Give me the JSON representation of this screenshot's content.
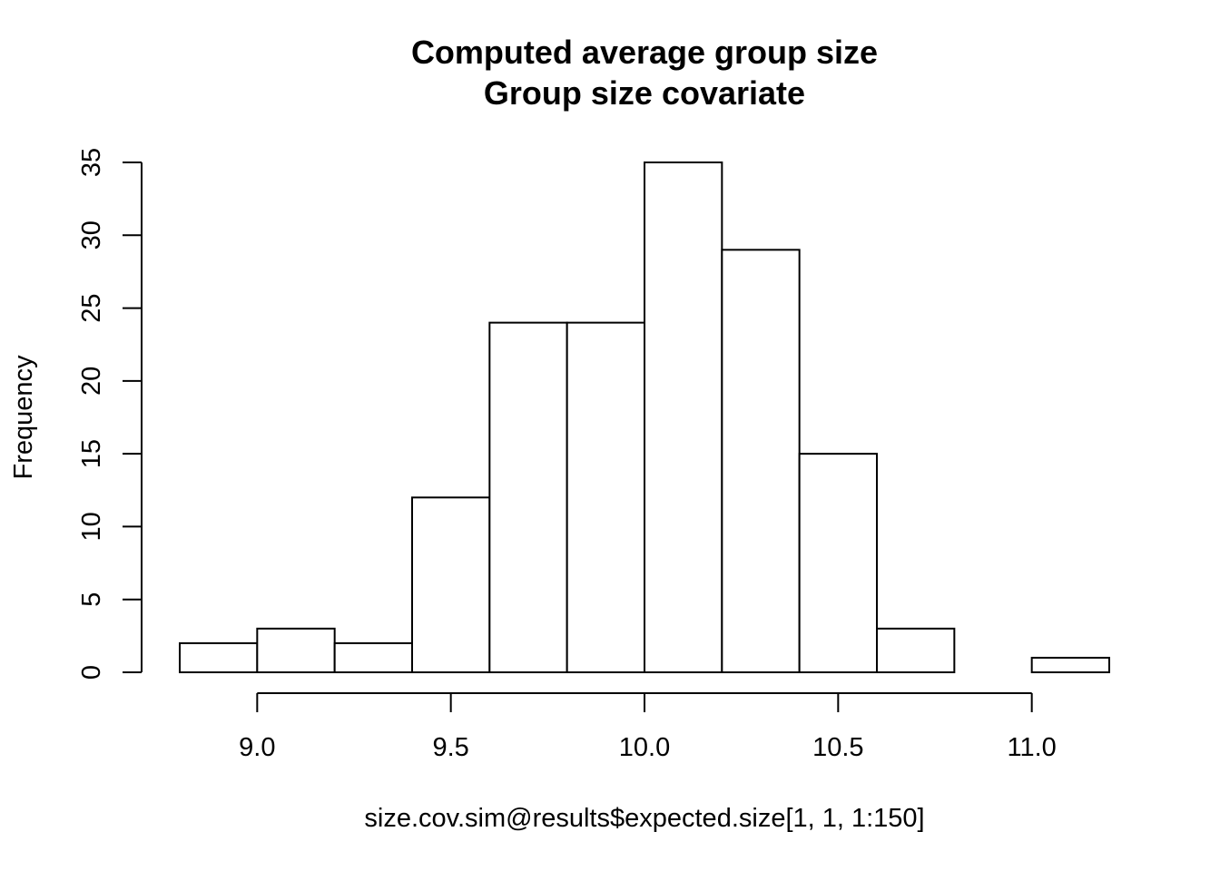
{
  "chart_data": {
    "type": "bar",
    "title": "Computed average group size",
    "subtitle": "Group size covariate",
    "xlabel": "size.cov.sim@results$expected.size[1, 1, 1:150]",
    "ylabel": "Frequency",
    "bins": [
      {
        "start": 8.8,
        "end": 9.0,
        "count": 2
      },
      {
        "start": 9.0,
        "end": 9.2,
        "count": 3
      },
      {
        "start": 9.2,
        "end": 9.4,
        "count": 2
      },
      {
        "start": 9.4,
        "end": 9.6,
        "count": 12
      },
      {
        "start": 9.6,
        "end": 9.8,
        "count": 24
      },
      {
        "start": 9.8,
        "end": 10.0,
        "count": 24
      },
      {
        "start": 10.0,
        "end": 10.2,
        "count": 35
      },
      {
        "start": 10.2,
        "end": 10.4,
        "count": 29
      },
      {
        "start": 10.4,
        "end": 10.6,
        "count": 15
      },
      {
        "start": 10.6,
        "end": 10.8,
        "count": 3
      },
      {
        "start": 10.8,
        "end": 11.0,
        "count": 0
      },
      {
        "start": 11.0,
        "end": 11.2,
        "count": 1
      }
    ],
    "xlim": [
      8.8,
      11.2
    ],
    "ylim": [
      0,
      35
    ],
    "x_ticks": [
      {
        "value": 9.0,
        "label": "9.0"
      },
      {
        "value": 9.5,
        "label": "9.5"
      },
      {
        "value": 10.0,
        "label": "10.0"
      },
      {
        "value": 10.5,
        "label": "10.5"
      },
      {
        "value": 11.0,
        "label": "11.0"
      }
    ],
    "y_ticks": [
      {
        "value": 0,
        "label": "0"
      },
      {
        "value": 5,
        "label": "5"
      },
      {
        "value": 10,
        "label": "10"
      },
      {
        "value": 15,
        "label": "15"
      },
      {
        "value": 20,
        "label": "20"
      },
      {
        "value": 25,
        "label": "25"
      },
      {
        "value": 30,
        "label": "30"
      },
      {
        "value": 35,
        "label": "35"
      }
    ],
    "grid": false,
    "legend": "none"
  }
}
